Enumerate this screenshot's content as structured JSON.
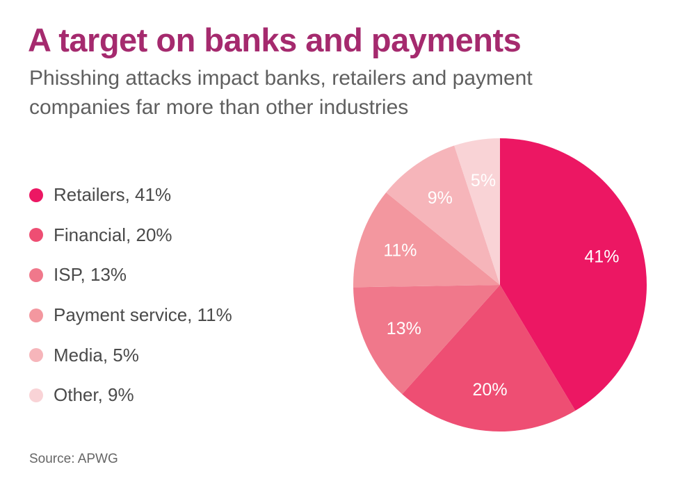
{
  "title": "A target on banks and payments",
  "subtitle": "Phisshing attacks impact banks, retailers and payment companies far more than other industries",
  "source": "Source: APWG",
  "legend": [
    {
      "label": "Retailers, 41%",
      "color": "#ec1763"
    },
    {
      "label": "Financial, 20%",
      "color": "#ee4e73"
    },
    {
      "label": "ISP, 13%",
      "color": "#f0788b"
    },
    {
      "label": "Payment service, 11%",
      "color": "#f3979f"
    },
    {
      "label": "Media, 5%",
      "color": "#f6b5ba"
    },
    {
      "label": "Other, 9%",
      "color": "#f9d3d6"
    }
  ],
  "chart_data": {
    "type": "pie",
    "categories": [
      "Retailers",
      "Financial",
      "ISP",
      "Payment service",
      "Other",
      "Media"
    ],
    "values": [
      41,
      20,
      13,
      11,
      9,
      5
    ],
    "slice_labels": [
      "41%",
      "20%",
      "13%",
      "11%",
      "9%",
      "5%"
    ],
    "colors": [
      "#ec1763",
      "#ee4e73",
      "#f0788b",
      "#f3979f",
      "#f6b5ba",
      "#f9d3d6"
    ],
    "legend_position": "left"
  }
}
